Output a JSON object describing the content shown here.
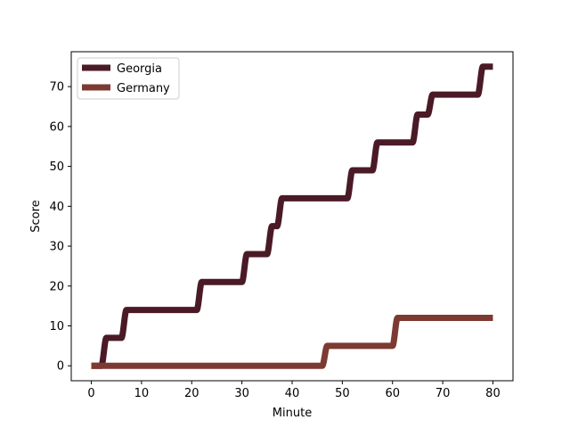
{
  "chart_data": {
    "type": "line",
    "title": "",
    "xlabel": "Minute",
    "ylabel": "Score",
    "xlim": [
      -4,
      84
    ],
    "ylim": [
      -3.75,
      78.75
    ],
    "xticks": [
      0,
      10,
      20,
      30,
      40,
      50,
      60,
      70,
      80
    ],
    "yticks": [
      0,
      10,
      20,
      30,
      40,
      50,
      60,
      70
    ],
    "grid": false,
    "legend": "upper left",
    "series": [
      {
        "name": "Georgia",
        "color": "#4a1a26",
        "steps": [
          [
            0,
            0
          ],
          [
            2,
            0
          ],
          [
            3,
            7
          ],
          [
            6,
            7
          ],
          [
            7,
            14
          ],
          [
            8,
            14
          ],
          [
            21,
            14
          ],
          [
            22,
            21
          ],
          [
            30,
            21
          ],
          [
            31,
            28
          ],
          [
            35,
            28
          ],
          [
            36,
            35
          ],
          [
            37,
            35
          ],
          [
            38,
            42
          ],
          [
            51,
            42
          ],
          [
            52,
            49
          ],
          [
            56,
            49
          ],
          [
            57,
            56
          ],
          [
            64,
            56
          ],
          [
            65,
            63
          ],
          [
            67,
            63
          ],
          [
            68,
            68
          ],
          [
            77,
            68
          ],
          [
            78,
            75
          ],
          [
            80,
            75
          ]
        ]
      },
      {
        "name": "Germany",
        "color": "#7d3a33",
        "steps": [
          [
            0,
            0
          ],
          [
            46,
            0
          ],
          [
            47,
            5
          ],
          [
            60,
            5
          ],
          [
            61,
            12
          ],
          [
            80,
            12
          ]
        ]
      }
    ]
  }
}
